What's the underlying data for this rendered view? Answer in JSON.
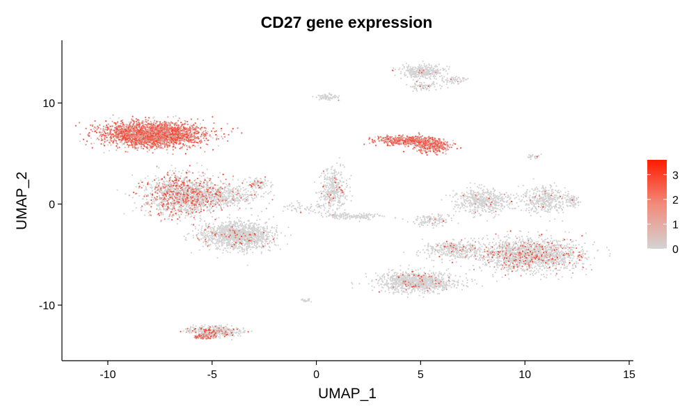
{
  "chart_data": {
    "type": "scatter",
    "title": "CD27 gene expression",
    "xlabel": "UMAP_1",
    "ylabel": "UMAP_2",
    "xlim": [
      -12.2,
      15.2
    ],
    "ylim": [
      -15.5,
      16.2
    ],
    "xticks": [
      -10,
      -5,
      0,
      5,
      10,
      15
    ],
    "xtick_labels": [
      "-10",
      "-5",
      "0",
      "5",
      "10",
      "15"
    ],
    "yticks": [
      -10,
      0,
      10
    ],
    "ytick_labels": [
      "-10",
      "0",
      "10"
    ],
    "grid": false,
    "color_scale": {
      "low": "#d3d3d3",
      "high": "#ff1a00",
      "range": [
        0,
        3.6
      ],
      "ticks": [
        0,
        1,
        2,
        3
      ],
      "tick_labels": [
        "0",
        "1",
        "2",
        "3"
      ],
      "placement": "right"
    },
    "clusters": [
      {
        "x": -7.8,
        "y": 6.9,
        "sx": 2.2,
        "sy": 1.1,
        "n": 2600,
        "expr": 0.8
      },
      {
        "x": -6.4,
        "y": 0.9,
        "sx": 1.6,
        "sy": 1.8,
        "n": 1400,
        "expr": 0.3
      },
      {
        "x": -3.8,
        "y": -3.1,
        "sx": 1.5,
        "sy": 1.2,
        "n": 1400,
        "expr": 0.04
      },
      {
        "x": -4.5,
        "y": 0.8,
        "sx": 1.6,
        "sy": 1.0,
        "n": 450,
        "expr": 0.1
      },
      {
        "x": -2.8,
        "y": 2.0,
        "sx": 0.5,
        "sy": 0.6,
        "n": 90,
        "expr": 0.15
      },
      {
        "x": 0.8,
        "y": 1.4,
        "sx": 0.6,
        "sy": 1.9,
        "n": 380,
        "expr": 0.06
      },
      {
        "x": 1.7,
        "y": -1.2,
        "sx": 1.3,
        "sy": 0.3,
        "n": 150,
        "expr": 0.02
      },
      {
        "x": -0.6,
        "y": -0.4,
        "sx": 0.9,
        "sy": 0.5,
        "n": 60,
        "expr": 0.05
      },
      {
        "x": 4.3,
        "y": 6.3,
        "sx": 1.3,
        "sy": 0.4,
        "n": 450,
        "expr": 0.9
      },
      {
        "x": 5.6,
        "y": 5.8,
        "sx": 0.8,
        "sy": 0.6,
        "n": 350,
        "expr": 0.85
      },
      {
        "x": 5.1,
        "y": 13.1,
        "sx": 0.9,
        "sy": 0.6,
        "n": 320,
        "expr": 0.02
      },
      {
        "x": 5.2,
        "y": 11.7,
        "sx": 0.7,
        "sy": 0.4,
        "n": 80,
        "expr": 0.02
      },
      {
        "x": 6.6,
        "y": 12.3,
        "sx": 0.5,
        "sy": 0.3,
        "n": 60,
        "expr": 0.02
      },
      {
        "x": 0.5,
        "y": 10.6,
        "sx": 0.5,
        "sy": 0.3,
        "n": 70,
        "expr": 0.02
      },
      {
        "x": 8.0,
        "y": 0.3,
        "sx": 1.3,
        "sy": 1.1,
        "n": 520,
        "expr": 0.05
      },
      {
        "x": 5.6,
        "y": -1.6,
        "sx": 0.9,
        "sy": 0.5,
        "n": 120,
        "expr": 0.03
      },
      {
        "x": 11.0,
        "y": 0.4,
        "sx": 1.0,
        "sy": 1.2,
        "n": 380,
        "expr": 0.03
      },
      {
        "x": 10.3,
        "y": -5.0,
        "sx": 2.3,
        "sy": 1.5,
        "n": 1600,
        "expr": 0.15
      },
      {
        "x": 6.6,
        "y": -4.5,
        "sx": 1.4,
        "sy": 0.8,
        "n": 350,
        "expr": 0.08
      },
      {
        "x": 4.8,
        "y": -7.7,
        "sx": 1.7,
        "sy": 0.9,
        "n": 1000,
        "expr": 0.05
      },
      {
        "x": 12.3,
        "y": 0.3,
        "sx": 0.3,
        "sy": 0.8,
        "n": 60,
        "expr": 0.02
      },
      {
        "x": 10.4,
        "y": 4.7,
        "sx": 0.4,
        "sy": 0.2,
        "n": 25,
        "expr": 0.02
      },
      {
        "x": -4.9,
        "y": -12.6,
        "sx": 1.2,
        "sy": 0.5,
        "n": 420,
        "expr": 0.2
      },
      {
        "x": -5.3,
        "y": -13.1,
        "sx": 0.5,
        "sy": 0.3,
        "n": 90,
        "expr": 0.6
      },
      {
        "x": -0.5,
        "y": -9.5,
        "sx": 0.2,
        "sy": 0.2,
        "n": 25,
        "expr": 0.02
      }
    ]
  }
}
